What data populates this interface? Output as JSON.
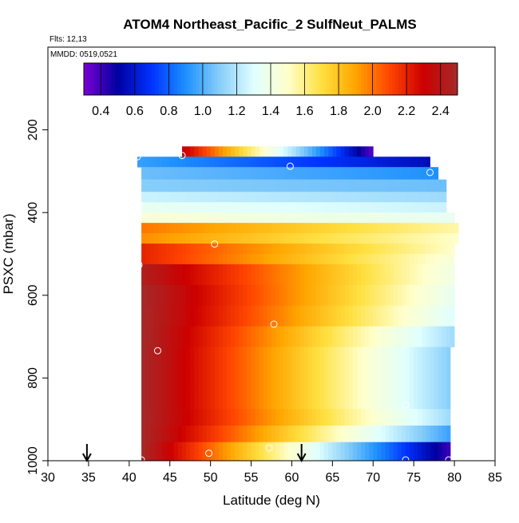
{
  "chart_data": {
    "type": "heatmap",
    "title": "ATOM4 Northeast_Pacific_2 SulfNeut_PALMS",
    "flights_label": "Flts: 12,13",
    "dates_label": "MMDD: 0519,0521",
    "xlabel": "Latitude (deg N)",
    "ylabel": "PSXC (mbar)",
    "xlim": [
      30,
      85
    ],
    "ylim": [
      1000,
      0
    ],
    "x_ticks": [
      "30",
      "35",
      "40",
      "45",
      "50",
      "55",
      "60",
      "65",
      "70",
      "75",
      "80",
      "85"
    ],
    "y_ticks": [
      "200",
      "400",
      "600",
      "800",
      "1000"
    ],
    "colorbar": {
      "range": [
        0.3,
        2.5
      ],
      "ticks": [
        "0.4",
        "0.6",
        "0.8",
        "1.0",
        "1.2",
        "1.4",
        "1.6",
        "1.8",
        "2.0",
        "2.2",
        "2.4"
      ],
      "stops": [
        "#7b00d4",
        "#0000a0",
        "#0033ff",
        "#1e90ff",
        "#87cefa",
        "#e0ffff",
        "#ffffcc",
        "#ffe040",
        "#ffa500",
        "#ff4500",
        "#cc0000",
        "#a52a2a"
      ]
    },
    "arrows_lat": [
      34.8,
      61.2
    ],
    "bands": [
      {
        "p": [
          240,
          265
        ],
        "lat": [
          46.5,
          70.0
        ],
        "v0": 2.35,
        "v1": 0.35
      },
      {
        "p": [
          265,
          290
        ],
        "lat": [
          41.0,
          77.0
        ],
        "v0": 0.95,
        "v1": 0.55
      },
      {
        "p": [
          290,
          320
        ],
        "lat": [
          41.5,
          78.0
        ],
        "v0": 1.05,
        "v1": 0.9
      },
      {
        "p": [
          320,
          350
        ],
        "lat": [
          41.5,
          79.0
        ],
        "v0": 1.1,
        "v1": 1.05
      },
      {
        "p": [
          350,
          375
        ],
        "lat": [
          41.5,
          79.0
        ],
        "v0": 1.25,
        "v1": 1.15
      },
      {
        "p": [
          375,
          400
        ],
        "lat": [
          41.5,
          79.0
        ],
        "v0": 1.35,
        "v1": 1.25
      },
      {
        "p": [
          400,
          425
        ],
        "lat": [
          41.5,
          80.0
        ],
        "v0": 1.45,
        "v1": 1.35
      },
      {
        "p": [
          425,
          450
        ],
        "lat": [
          41.5,
          80.5
        ],
        "v0": 2.0,
        "v1": 1.55
      },
      {
        "p": [
          450,
          475
        ],
        "lat": [
          41.5,
          80.5
        ],
        "v0": 1.95,
        "v1": 1.5
      },
      {
        "p": [
          475,
          500
        ],
        "lat": [
          41.5,
          80.0
        ],
        "v0": 2.2,
        "v1": 1.5
      },
      {
        "p": [
          500,
          525
        ],
        "lat": [
          41.5,
          80.0
        ],
        "v0": 2.2,
        "v1": 1.45
      },
      {
        "p": [
          525,
          575
        ],
        "lat": [
          41.5,
          80.0
        ],
        "v0": 2.45,
        "v1": 1.4
      },
      {
        "p": [
          575,
          625
        ],
        "lat": [
          41.5,
          80.0
        ],
        "v0": 2.5,
        "v1": 1.35
      },
      {
        "p": [
          625,
          675
        ],
        "lat": [
          41.5,
          80.0
        ],
        "v0": 2.5,
        "v1": 1.3
      },
      {
        "p": [
          675,
          725
        ],
        "lat": [
          41.5,
          80.0
        ],
        "v0": 2.5,
        "v1": 1.15
      },
      {
        "p": [
          725,
          775
        ],
        "lat": [
          41.5,
          79.5
        ],
        "v0": 2.5,
        "v1": 1.1
      },
      {
        "p": [
          775,
          825
        ],
        "lat": [
          41.5,
          79.5
        ],
        "v0": 2.5,
        "v1": 1.1
      },
      {
        "p": [
          825,
          875
        ],
        "lat": [
          41.5,
          79.5
        ],
        "v0": 2.5,
        "v1": 1.1
      },
      {
        "p": [
          875,
          915
        ],
        "lat": [
          41.5,
          79.5
        ],
        "v0": 2.5,
        "v1": 1.15
      },
      {
        "p": [
          915,
          955
        ],
        "lat": [
          41.5,
          79.5
        ],
        "v0": 2.5,
        "v1": 0.95
      },
      {
        "p": [
          955,
          1000
        ],
        "lat": [
          41.5,
          79.5
        ],
        "v0": 2.5,
        "v1": 0.4
      }
    ],
    "points": [
      {
        "lat": 69.8,
        "p": 228
      },
      {
        "lat": 46.5,
        "p": 262
      },
      {
        "lat": 41.0,
        "p": 265
      },
      {
        "lat": 59.8,
        "p": 288
      },
      {
        "lat": 77.0,
        "p": 303
      },
      {
        "lat": 50.5,
        "p": 476
      },
      {
        "lat": 41.2,
        "p": 527
      },
      {
        "lat": 57.8,
        "p": 670
      },
      {
        "lat": 43.5,
        "p": 734
      },
      {
        "lat": 74.0,
        "p": 865
      },
      {
        "lat": 57.2,
        "p": 969
      },
      {
        "lat": 49.8,
        "p": 982
      },
      {
        "lat": 41.5,
        "p": 998
      },
      {
        "lat": 74.0,
        "p": 998
      },
      {
        "lat": 79.3,
        "p": 998
      }
    ]
  }
}
